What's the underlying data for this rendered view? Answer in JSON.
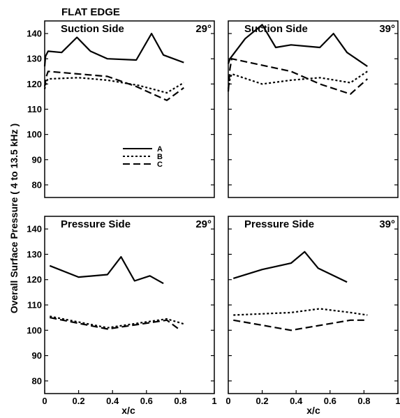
{
  "figure_title": "FLAT EDGE",
  "ylabel": "Overall Surface Pressure ( 4 to 13.5 kHz )",
  "xlabel": "x/c",
  "legend": [
    {
      "label": "A",
      "dash": "solid"
    },
    {
      "label": "B",
      "dash": "dotted"
    },
    {
      "label": "C",
      "dash": "dashed"
    }
  ],
  "chart_data": [
    {
      "type": "line",
      "title": "Suction Side",
      "angle_label": "29°",
      "xlabel": "",
      "ylabel": "",
      "xlim": [
        0,
        1
      ],
      "ylim": [
        75,
        145
      ],
      "xticks": [],
      "xtick_labels": [],
      "yticks": [
        80,
        90,
        100,
        110,
        120,
        130,
        140
      ],
      "ytick_labels": [
        "80",
        "90",
        "100",
        "110",
        "120",
        "130",
        "140"
      ],
      "grid": false,
      "series": [
        {
          "name": "A",
          "x": [
            0,
            0.005,
            0.02,
            0.1,
            0.19,
            0.27,
            0.37,
            0.54,
            0.63,
            0.7,
            0.82
          ],
          "y": [
            127,
            131,
            133,
            132.5,
            138.5,
            133,
            130,
            129.5,
            140,
            131.5,
            128.5
          ]
        },
        {
          "name": "B",
          "x": [
            0,
            0.01,
            0.02,
            0.2,
            0.37,
            0.55,
            0.72,
            0.82
          ],
          "y": [
            118,
            121,
            122,
            122.5,
            121.5,
            119.5,
            116.5,
            120.5
          ]
        },
        {
          "name": "C",
          "x": [
            0,
            0.01,
            0.02,
            0.37,
            0.54,
            0.72,
            0.82
          ],
          "y": [
            119,
            123,
            125,
            123,
            119,
            113.5,
            118.5
          ]
        }
      ]
    },
    {
      "type": "line",
      "title": "Suction Side",
      "angle_label": "39°",
      "xlabel": "",
      "ylabel": "",
      "xlim": [
        0,
        1
      ],
      "ylim": [
        75,
        145
      ],
      "xticks": [],
      "xtick_labels": [],
      "yticks": [
        80,
        90,
        100,
        110,
        120,
        130,
        140
      ],
      "ytick_labels": [],
      "grid": false,
      "series": [
        {
          "name": "A",
          "x": [
            0,
            0.01,
            0.1,
            0.2,
            0.28,
            0.37,
            0.54,
            0.62,
            0.7,
            0.82
          ],
          "y": [
            128,
            130,
            138,
            143.5,
            134.5,
            135.5,
            134.5,
            140,
            132.5,
            127
          ]
        },
        {
          "name": "B",
          "x": [
            0,
            0.01,
            0.02,
            0.2,
            0.37,
            0.54,
            0.72,
            0.82
          ],
          "y": [
            118,
            122,
            124,
            120,
            121.5,
            122.5,
            120.5,
            125
          ]
        },
        {
          "name": "C",
          "x": [
            0,
            0.01,
            0.02,
            0.37,
            0.54,
            0.72,
            0.82
          ],
          "y": [
            117,
            126,
            130,
            125,
            120,
            116,
            122
          ]
        }
      ]
    },
    {
      "type": "line",
      "title": "Pressure Side",
      "angle_label": "29°",
      "xlabel": "x/c",
      "ylabel": "",
      "xlim": [
        0,
        1
      ],
      "ylim": [
        75,
        145
      ],
      "xticks": [
        0,
        0.2,
        0.4,
        0.6,
        0.8,
        1
      ],
      "xtick_labels": [
        "0",
        "0.2",
        "0.4",
        "0.6",
        "0.8",
        "1"
      ],
      "yticks": [
        80,
        90,
        100,
        110,
        120,
        130,
        140
      ],
      "ytick_labels": [
        "80",
        "90",
        "100",
        "110",
        "120",
        "130",
        "140"
      ],
      "grid": false,
      "series": [
        {
          "name": "A",
          "x": [
            0.03,
            0.2,
            0.37,
            0.45,
            0.53,
            0.62,
            0.7
          ],
          "y": [
            125.5,
            121,
            122,
            129,
            119.5,
            121.5,
            118.5
          ]
        },
        {
          "name": "B",
          "x": [
            0.03,
            0.37,
            0.72,
            0.82
          ],
          "y": [
            105.5,
            101,
            104.5,
            102.5
          ]
        },
        {
          "name": "C",
          "x": [
            0.03,
            0.37,
            0.72,
            0.8
          ],
          "y": [
            105,
            100.5,
            104,
            100
          ]
        }
      ]
    },
    {
      "type": "line",
      "title": "Pressure Side",
      "angle_label": "39°",
      "xlabel": "x/c",
      "ylabel": "",
      "xlim": [
        0,
        1
      ],
      "ylim": [
        75,
        145
      ],
      "xticks": [
        0,
        0.2,
        0.4,
        0.6,
        0.8,
        1
      ],
      "xtick_labels": [
        "0",
        "0.2",
        "0.4",
        "0.6",
        "0.8",
        "1"
      ],
      "yticks": [
        80,
        90,
        100,
        110,
        120,
        130,
        140
      ],
      "ytick_labels": [],
      "grid": false,
      "series": [
        {
          "name": "A",
          "x": [
            0.03,
            0.2,
            0.37,
            0.45,
            0.53,
            0.7
          ],
          "y": [
            120.5,
            124,
            126.5,
            131,
            124.5,
            119
          ]
        },
        {
          "name": "B",
          "x": [
            0.03,
            0.2,
            0.37,
            0.54,
            0.72,
            0.82
          ],
          "y": [
            106,
            106.5,
            107,
            108.5,
            107,
            106
          ]
        },
        {
          "name": "C",
          "x": [
            0.03,
            0.37,
            0.72,
            0.82
          ],
          "y": [
            104,
            100,
            104,
            104
          ]
        }
      ]
    }
  ]
}
